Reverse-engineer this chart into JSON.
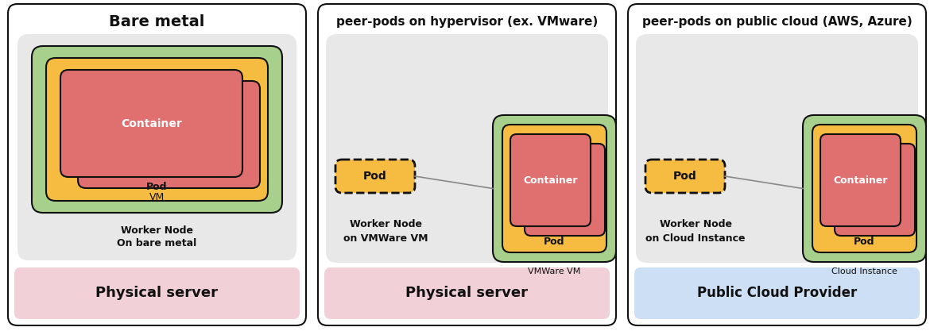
{
  "panel1_title": "Bare metal",
  "panel2_title": "peer-pods on hypervisor (ex. VMware)",
  "panel3_title": "peer-pods on public cloud (AWS, Azure)",
  "color_green": "#a8d08d",
  "color_yellow": "#f5bc41",
  "color_red": "#e07070",
  "color_gray_bg": "#e8e8e8",
  "color_pink_bg": "#f2d0d8",
  "color_blue_bg": "#ccdff5",
  "color_white": "#ffffff",
  "color_black": "#111111",
  "border_color": "#888888",
  "fig_width": 11.7,
  "fig_height": 4.17,
  "dpi": 100
}
